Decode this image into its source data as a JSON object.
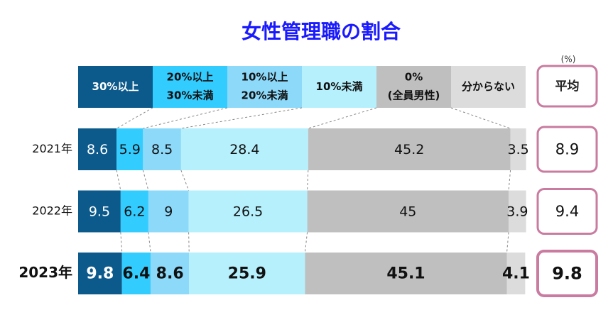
{
  "chart_data": {
    "type": "stacked-bar-horizontal",
    "title": "女性管理職の割合",
    "unit": "(%)",
    "average_label": "平均",
    "categories": [
      "2021年",
      "2022年",
      "2023年"
    ],
    "xlim": [
      0,
      100
    ],
    "series": [
      {
        "name": "30%以上",
        "color": "#0c5a8c",
        "values": [
          8.6,
          9.5,
          9.8
        ]
      },
      {
        "name": [
          "20%以上",
          "30%未満"
        ],
        "color": "#33ccff",
        "values": [
          5.9,
          6.2,
          6.4
        ]
      },
      {
        "name": [
          "10%以上",
          "20%未満"
        ],
        "color": "#8dd9fa",
        "values": [
          8.5,
          9.0,
          8.6
        ]
      },
      {
        "name": "10%未満",
        "color": "#b5f0fc",
        "values": [
          28.4,
          26.5,
          25.9
        ]
      },
      {
        "name": [
          "0%",
          "(全員男性)"
        ],
        "color": "#bfbfbf",
        "values": [
          45.2,
          45.0,
          45.1
        ]
      },
      {
        "name": "分からない",
        "color": "#dcdcdc",
        "values": [
          3.5,
          3.9,
          4.1
        ]
      }
    ],
    "averages": [
      8.9,
      9.4,
      9.8
    ]
  }
}
